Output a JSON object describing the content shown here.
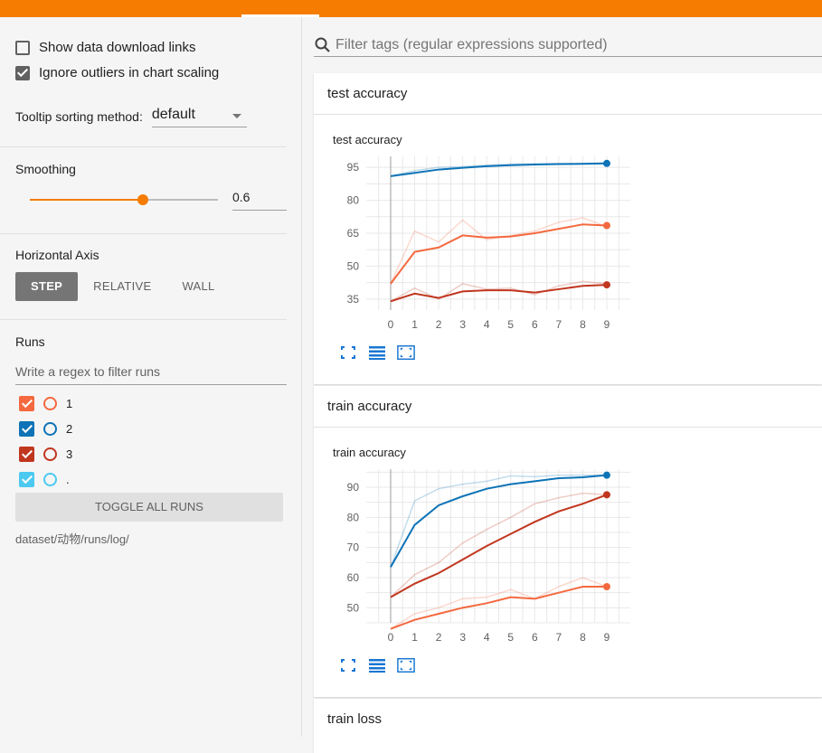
{
  "sidebar": {
    "show_download_label": "Show data download links",
    "ignore_outliers_label": "Ignore outliers in chart scaling",
    "tooltip_label": "Tooltip sorting method:",
    "tooltip_value": "default",
    "smoothing_label": "Smoothing",
    "smoothing_value": "0.6",
    "smoothing_level": 0.6,
    "axis_label": "Horizontal Axis",
    "axis_buttons": [
      "STEP",
      "RELATIVE",
      "WALL"
    ],
    "runs_label": "Runs",
    "runs_placeholder": "Write a regex to filter runs",
    "runs": [
      {
        "name": "1",
        "color": "#f4693f"
      },
      {
        "name": "2",
        "color": "#0d73b6"
      },
      {
        "name": "3",
        "color": "#c1361f"
      },
      {
        "name": ".",
        "color": "#4cc9f0"
      }
    ],
    "toggle_label": "TOGGLE ALL RUNS",
    "log_path": "dataset/动物/runs/log/"
  },
  "main": {
    "filter_placeholder": "Filter tags (regular expressions supported)",
    "cards": [
      {
        "header": "test accuracy"
      },
      {
        "header": "train accuracy"
      },
      {
        "header": "train loss"
      }
    ]
  },
  "chart_data": [
    {
      "type": "line",
      "title": "test accuracy",
      "x": [
        0,
        1,
        2,
        3,
        4,
        5,
        6,
        7,
        8,
        9
      ],
      "ylim": [
        30,
        100
      ],
      "yticks": [
        35,
        50,
        65,
        80,
        95
      ],
      "series": [
        {
          "name": "2",
          "color": "#0d73b6",
          "values": [
            91,
            92.5,
            94,
            94.8,
            95.5,
            96,
            96.3,
            96.5,
            96.6,
            96.8
          ],
          "raw": [
            91,
            93.5,
            95,
            95.3,
            96,
            96.5,
            96.6,
            96.7,
            96.8,
            97
          ]
        },
        {
          "name": "1",
          "color": "#f4693f",
          "values": [
            42,
            56.5,
            58.5,
            64,
            63,
            63.5,
            65,
            67,
            69,
            68.5
          ],
          "raw": [
            42,
            66,
            61,
            71,
            62,
            64,
            66,
            70,
            72,
            68
          ]
        },
        {
          "name": "3",
          "color": "#c1361f",
          "values": [
            34,
            37.5,
            35.5,
            38.5,
            39,
            39,
            38,
            39.5,
            41,
            41.5
          ],
          "raw": [
            34,
            40,
            35,
            42,
            39.5,
            40,
            37,
            41,
            43,
            42
          ]
        }
      ]
    },
    {
      "type": "line",
      "title": "train accuracy",
      "x": [
        0,
        1,
        2,
        3,
        4,
        5,
        6,
        7,
        8,
        9
      ],
      "ylim": [
        45,
        96
      ],
      "yticks": [
        50,
        60,
        70,
        80,
        90
      ],
      "series": [
        {
          "name": "2",
          "color": "#0d73b6",
          "values": [
            63.5,
            77.5,
            84,
            87,
            89.5,
            91,
            92,
            93,
            93.3,
            94
          ],
          "raw": [
            63.5,
            85.5,
            89.5,
            91,
            92,
            93.8,
            93.5,
            94,
            94,
            94
          ]
        },
        {
          "name": "3",
          "color": "#c1361f",
          "values": [
            53.5,
            58,
            61.5,
            66,
            70.5,
            74.5,
            78.5,
            82,
            84.5,
            87.5
          ],
          "raw": [
            53.5,
            61,
            65,
            71.5,
            76,
            80,
            84.5,
            86.5,
            88,
            87.5
          ]
        },
        {
          "name": "1",
          "color": "#f4693f",
          "values": [
            43,
            46,
            48,
            50,
            51.5,
            53.5,
            53,
            55,
            57,
            57
          ],
          "raw": [
            43,
            48,
            50,
            53,
            53.5,
            56,
            53,
            57,
            60,
            57
          ]
        }
      ]
    }
  ]
}
